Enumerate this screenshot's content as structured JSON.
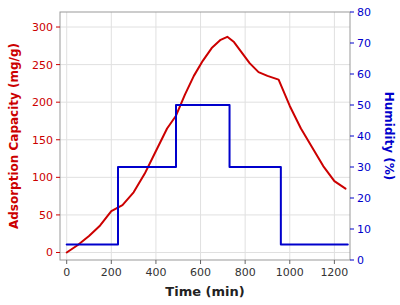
{
  "chart_data": {
    "type": "line",
    "xlabel": "Time (min)",
    "ylabel": "Adsorption Capacity (mg/g)",
    "y2label": "Humidity (%)",
    "xlim": [
      -30,
      1270
    ],
    "xticks": [
      0,
      200,
      400,
      600,
      800,
      1000,
      1200
    ],
    "ylim": [
      -10,
      320
    ],
    "yticks": [
      0,
      50,
      100,
      150,
      200,
      250,
      300
    ],
    "y2lim": [
      0,
      80
    ],
    "y2ticks": [
      0,
      10,
      20,
      30,
      40,
      50,
      60,
      70,
      80
    ],
    "grid": true,
    "series": [
      {
        "color": "#cc0000",
        "x": [
          0,
          50,
          100,
          150,
          200,
          250,
          300,
          350,
          400,
          450,
          490,
          530,
          570,
          610,
          650,
          690,
          720,
          750,
          780,
          820,
          860,
          900,
          950,
          1000,
          1050,
          1100,
          1150,
          1200,
          1250
        ],
        "values": [
          0,
          10,
          22,
          36,
          55,
          63,
          80,
          105,
          135,
          165,
          182,
          210,
          235,
          255,
          272,
          283,
          287,
          280,
          268,
          252,
          240,
          235,
          230,
          195,
          165,
          140,
          115,
          95,
          85
        ]
      },
      {
        "color": "#0000cc",
        "axis": "y2",
        "x": [
          0,
          230,
          230,
          490,
          490,
          730,
          730,
          960,
          960,
          1260
        ],
        "values": [
          5,
          5,
          30,
          30,
          50,
          50,
          30,
          30,
          5,
          5
        ]
      }
    ]
  }
}
